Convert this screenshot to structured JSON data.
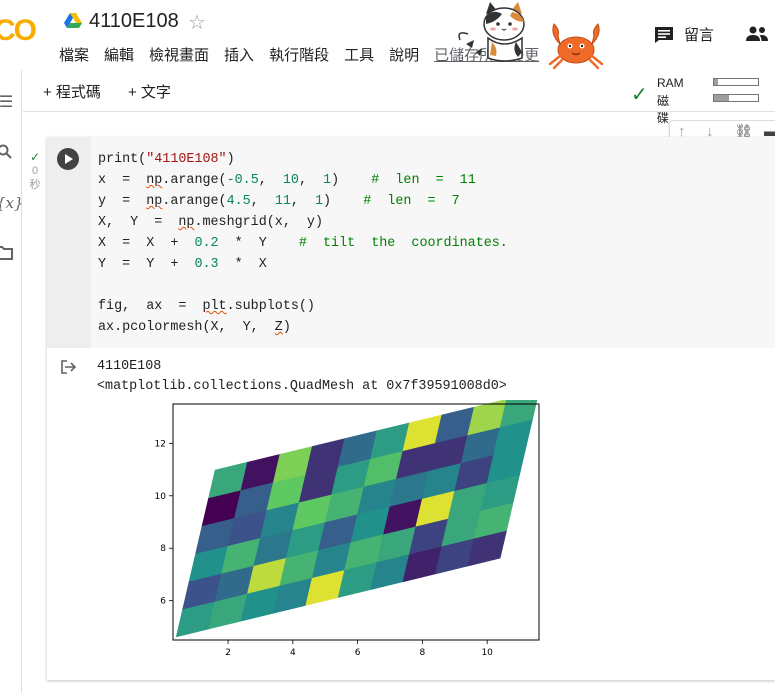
{
  "header": {
    "logo": "CO",
    "title": "4110E108",
    "menu": [
      "檔案",
      "編輯",
      "檢視畫面",
      "插入",
      "執行階段",
      "工具",
      "說明"
    ],
    "saved_status": "已儲存所有變更",
    "comment_label": "留言"
  },
  "toolbar": {
    "add_code": "+ 程式碼",
    "add_text": "+ 文字",
    "ram_label": "RAM",
    "disk_label": "磁碟",
    "ram_usage": 0.08,
    "disk_usage": 0.35
  },
  "cell": {
    "exec_time": "0",
    "exec_unit": "秒"
  },
  "output": {
    "line1": "4110E108",
    "line2": "<matplotlib.collections.QuadMesh at 0x7f39591008d0>"
  },
  "chart_data": {
    "type": "heatmap",
    "x_ticks": [
      2,
      4,
      6,
      8,
      10
    ],
    "y_ticks": [
      6,
      8,
      10,
      12
    ],
    "xlim": [
      0.3,
      11.6
    ],
    "ylim": [
      4.5,
      13.5
    ],
    "x": [
      -0.5,
      0.5,
      1.5,
      2.5,
      3.5,
      4.5,
      5.5,
      6.5,
      7.5,
      8.5,
      9.5
    ],
    "y": [
      4.5,
      5.5,
      6.5,
      7.5,
      8.5,
      9.5,
      10.5
    ],
    "tilt_x_per_y": 0.2,
    "tilt_y_per_x": 0.3,
    "colormap": [
      "#440154",
      "#3b528b",
      "#21918c",
      "#5ec962",
      "#fde725"
    ],
    "values": [
      [
        0.55,
        0.6,
        0.5,
        0.45,
        0.95,
        0.55,
        0.45,
        0.1,
        0.2,
        0.15
      ],
      [
        0.25,
        0.35,
        0.9,
        0.65,
        0.45,
        0.65,
        0.6,
        0.2,
        0.6,
        0.65
      ],
      [
        0.5,
        0.65,
        0.4,
        0.55,
        0.3,
        0.5,
        0.05,
        0.95,
        0.6,
        0.55
      ],
      [
        0.3,
        0.25,
        0.45,
        0.75,
        0.65,
        0.45,
        0.4,
        0.45,
        0.2,
        0.5
      ],
      [
        0.0,
        0.3,
        0.75,
        0.15,
        0.55,
        0.7,
        0.15,
        0.15,
        0.35,
        0.5
      ],
      [
        0.6,
        0.05,
        0.8,
        0.15,
        0.35,
        0.55,
        0.95,
        0.3,
        0.85,
        0.6
      ]
    ]
  }
}
